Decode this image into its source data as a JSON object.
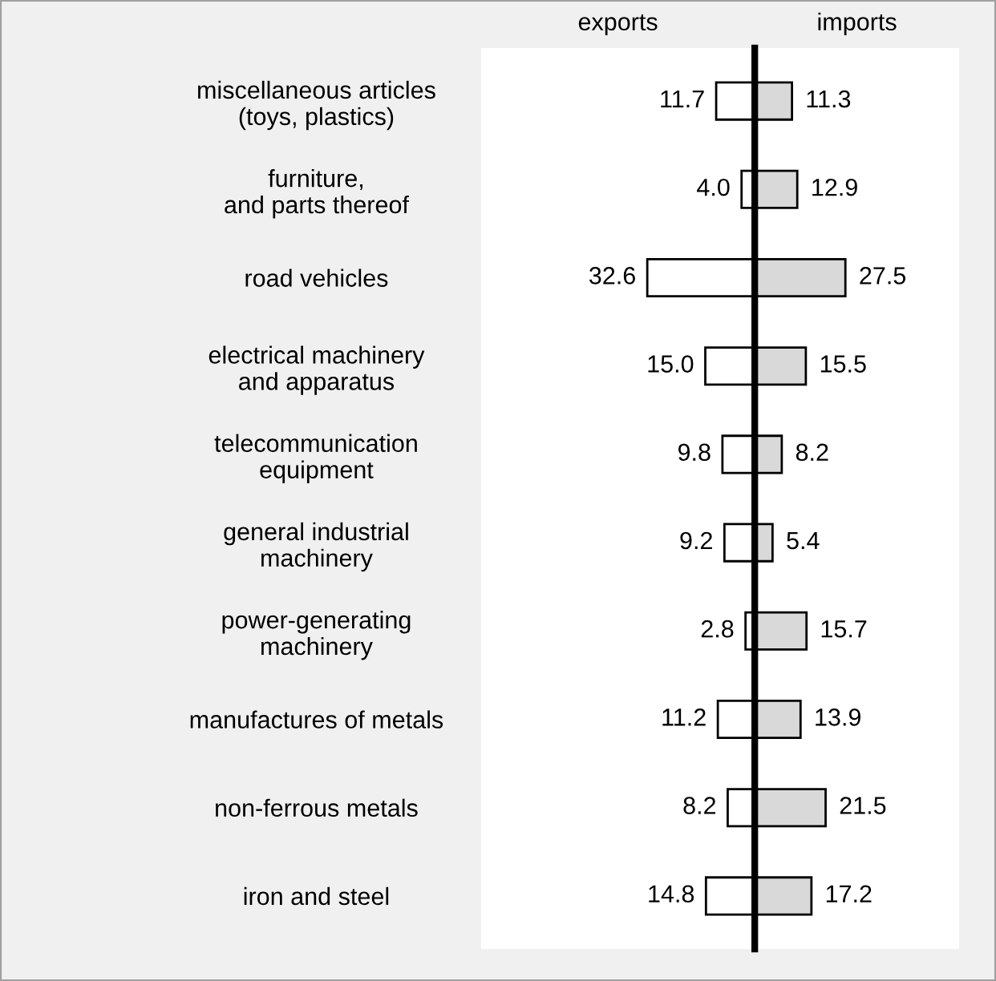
{
  "chart_data": [
    {
      "type": "bar",
      "orientation": "horizontal",
      "title": "exports",
      "xlim": [
        83,
        0
      ],
      "categories": [
        "miscellaneous articles\n(toys, plastics)",
        "furniture,\nand parts thereof",
        "road vehicles",
        "electrical machinery\nand apparatus",
        "telecommunication\nequipment",
        "general industrial\nmachinery",
        "power-generating\nmachinery",
        "manufactures of metals",
        "non-ferrous metals",
        "iron and steel"
      ],
      "series": [
        {
          "color": "#ffffff",
          "values": [
            11.7,
            4.0,
            32.6,
            15.0,
            9.8,
            9.2,
            2.8,
            11.2,
            8.2,
            14.8
          ],
          "value_labels": [
            "11.7",
            "4.0",
            "32.6",
            "15.0",
            "9.8",
            "9.2",
            "2.8",
            "11.2",
            "8.2",
            "14.8"
          ]
        }
      ],
      "grid": false,
      "tick_labels": "y"
    },
    {
      "type": "bar",
      "orientation": "horizontal",
      "title": "imports",
      "xlim": [
        0,
        62
      ],
      "categories": [
        null,
        null,
        null,
        null,
        null,
        null,
        null,
        null,
        null,
        null
      ],
      "series": [
        {
          "color": "#d9d9d9",
          "values": [
            11.3,
            12.9,
            27.5,
            15.5,
            8.2,
            5.4,
            15.7,
            13.9,
            21.5,
            17.2
          ],
          "value_labels": [
            "11.3",
            "12.9",
            "27.5",
            "15.5",
            "8.2",
            "5.4",
            "15.7",
            "13.9",
            "21.5",
            "17.2"
          ]
        }
      ],
      "grid": false,
      "tick_labels": false
    }
  ]
}
